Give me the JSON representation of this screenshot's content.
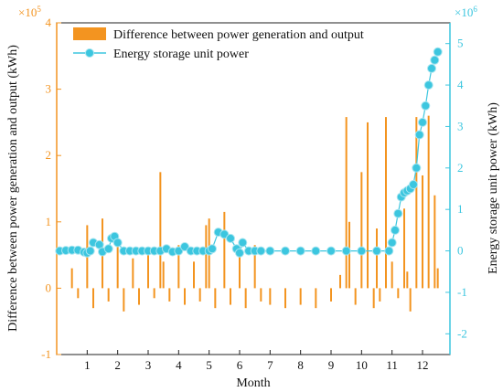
{
  "chart_data": {
    "type": "bar+line",
    "title": "",
    "xlabel": "Month",
    "ylabel_left": "Difference between power generation and output (kWh)",
    "ylabel_right": "Energy storage unit power (kWh)",
    "left_axis_multiplier": "×10^5",
    "right_axis_multiplier": "×10^6",
    "ylim_left": [
      -100000,
      400000
    ],
    "ylim_right": [
      -2500000,
      5500000
    ],
    "left_ticks": [
      -1,
      0,
      1,
      2,
      3,
      4
    ],
    "right_ticks": [
      -2,
      -1,
      0,
      1,
      2,
      3,
      4,
      5
    ],
    "x_ticks": [
      "1",
      "2",
      "3",
      "4",
      "5",
      "6",
      "7",
      "8",
      "9",
      "10",
      "11",
      "12"
    ],
    "legend_placement": "top-center",
    "series": [
      {
        "name": "Difference between power generation and output",
        "kind": "bar",
        "axis": "left",
        "color": "#f39420",
        "x": [
          0.5,
          0.7,
          1.0,
          1.2,
          1.5,
          1.7,
          2.0,
          2.2,
          2.5,
          2.7,
          3.0,
          3.2,
          3.4,
          3.5,
          3.7,
          4.0,
          4.2,
          4.5,
          4.7,
          4.9,
          5.0,
          5.2,
          5.5,
          5.7,
          6.0,
          6.2,
          6.5,
          6.7,
          7.0,
          7.5,
          8.0,
          8.5,
          9.0,
          9.3,
          9.5,
          9.6,
          9.8,
          10.0,
          10.2,
          10.4,
          10.5,
          10.6,
          10.8,
          11.0,
          11.2,
          11.4,
          11.5,
          11.6,
          11.8,
          12.0,
          12.2,
          12.4,
          12.5
        ],
        "values": [
          30000,
          -15000,
          95000,
          -30000,
          105000,
          -20000,
          80000,
          -35000,
          45000,
          -25000,
          60000,
          -15000,
          175000,
          40000,
          -20000,
          65000,
          -25000,
          40000,
          -20000,
          95000,
          105000,
          -30000,
          115000,
          -25000,
          55000,
          -30000,
          65000,
          -20000,
          -25000,
          -30000,
          -25000,
          -30000,
          -20000,
          20000,
          258000,
          100000,
          -25000,
          175000,
          250000,
          -30000,
          90000,
          -20000,
          258000,
          40000,
          -15000,
          120000,
          25000,
          -35000,
          258000,
          170000,
          260000,
          140000,
          30000
        ]
      },
      {
        "name": "Energy storage unit power",
        "kind": "line",
        "axis": "right",
        "color": "#3cc6df",
        "x": [
          0.1,
          0.3,
          0.5,
          0.7,
          0.9,
          1.0,
          1.1,
          1.2,
          1.4,
          1.5,
          1.7,
          1.8,
          1.9,
          2.0,
          2.2,
          2.4,
          2.6,
          2.8,
          3.0,
          3.2,
          3.4,
          3.6,
          3.8,
          4.0,
          4.2,
          4.4,
          4.6,
          4.8,
          5.0,
          5.1,
          5.3,
          5.5,
          5.7,
          5.9,
          6.0,
          6.1,
          6.3,
          6.5,
          6.7,
          7.0,
          7.5,
          8.0,
          8.5,
          9.0,
          9.5,
          10.0,
          10.5,
          10.9,
          11.0,
          11.1,
          11.2,
          11.3,
          11.4,
          11.5,
          11.6,
          11.7,
          11.8,
          11.9,
          12.0,
          12.1,
          12.2,
          12.3,
          12.4,
          12.5
        ],
        "values": [
          0,
          10000,
          20000,
          20000,
          -30000,
          -50000,
          0,
          200000,
          150000,
          -20000,
          50000,
          300000,
          350000,
          200000,
          0,
          0,
          0,
          0,
          0,
          0,
          0,
          50000,
          -20000,
          0,
          100000,
          0,
          0,
          0,
          0,
          50000,
          450000,
          400000,
          300000,
          50000,
          -50000,
          200000,
          0,
          0,
          0,
          0,
          0,
          0,
          0,
          0,
          0,
          0,
          0,
          0,
          200000,
          500000,
          900000,
          1300000,
          1400000,
          1450000,
          1500000,
          1600000,
          2000000,
          2800000,
          3100000,
          3500000,
          4000000,
          4400000,
          4600000,
          4800000
        ]
      }
    ]
  }
}
